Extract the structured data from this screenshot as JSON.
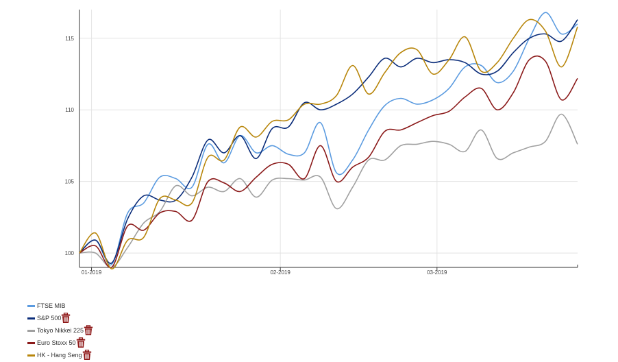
{
  "chart_data": {
    "type": "line",
    "title": "",
    "xlabel": "",
    "ylabel": "",
    "ylim": [
      99,
      117
    ],
    "yticks": [
      100,
      105,
      110,
      115
    ],
    "xtick_labels": [
      "01-2019",
      "02-2019",
      "03-2019"
    ],
    "xtick_index": [
      3,
      50,
      89
    ],
    "grid": true,
    "legend_position": "bottom-left",
    "x": [
      0,
      4,
      8,
      12,
      16,
      20,
      24,
      28,
      32,
      36,
      40,
      44,
      48,
      52,
      56,
      60,
      64,
      68,
      72,
      76,
      80,
      84,
      88,
      92,
      96,
      100,
      104,
      108,
      112,
      116,
      120,
      124
    ],
    "series": [
      {
        "name": "FTSE MIB",
        "color": "#5b9be0",
        "deletable": false,
        "values": [
          100,
          100.9,
          99.2,
          102.8,
          103.5,
          105.3,
          105.2,
          104.6,
          107.6,
          106.3,
          108.2,
          107.0,
          107.5,
          106.9,
          107.0,
          109.1,
          105.6,
          106.5,
          108.6,
          110.3,
          110.8,
          110.4,
          110.7,
          111.5,
          113.0,
          113.1,
          111.9,
          112.7,
          115.0,
          116.8,
          115.3,
          116.0
        ]
      },
      {
        "name": "S&P 500",
        "color": "#0b2d7a",
        "deletable": true,
        "values": [
          100,
          100.9,
          99.3,
          102.4,
          104.0,
          103.7,
          103.7,
          105.3,
          107.9,
          107.0,
          108.2,
          106.6,
          108.7,
          108.8,
          110.5,
          110.0,
          110.4,
          111.1,
          112.3,
          113.6,
          113.0,
          113.6,
          113.3,
          113.5,
          113.3,
          112.5,
          112.7,
          114.0,
          115.0,
          115.3,
          114.8,
          116.3
        ]
      },
      {
        "name": "Tokyo Nikkei 225",
        "color": "#a0a0a0",
        "deletable": true,
        "values": [
          100,
          100.0,
          99.0,
          100.4,
          102.1,
          102.9,
          104.7,
          104.0,
          104.6,
          104.3,
          105.2,
          103.9,
          105.1,
          105.2,
          105.1,
          105.3,
          103.1,
          104.6,
          106.5,
          106.5,
          107.5,
          107.6,
          107.8,
          107.6,
          107.1,
          108.6,
          106.6,
          107.0,
          107.4,
          107.8,
          109.7,
          107.6
        ]
      },
      {
        "name": "Euro Stoxx 50",
        "color": "#8b1a1a",
        "deletable": true,
        "values": [
          100,
          100.5,
          99.0,
          101.9,
          101.6,
          102.8,
          102.9,
          102.3,
          105.0,
          104.9,
          104.3,
          105.3,
          106.2,
          106.2,
          105.2,
          107.5,
          105.0,
          106.0,
          106.7,
          108.5,
          108.6,
          109.1,
          109.6,
          109.9,
          110.9,
          111.5,
          110.0,
          111.2,
          113.5,
          113.4,
          110.7,
          112.2
        ]
      },
      {
        "name": "HK - Hang Seng",
        "color": "#b8860b",
        "deletable": true,
        "values": [
          100,
          101.4,
          98.9,
          100.9,
          101.1,
          103.8,
          103.7,
          103.5,
          106.7,
          106.5,
          108.8,
          108.1,
          109.2,
          109.3,
          110.4,
          110.4,
          111.0,
          113.1,
          111.1,
          112.6,
          114.0,
          114.2,
          112.5,
          113.5,
          115.1,
          112.7,
          113.3,
          115.0,
          116.3,
          115.5,
          113.0,
          115.8
        ]
      }
    ]
  }
}
